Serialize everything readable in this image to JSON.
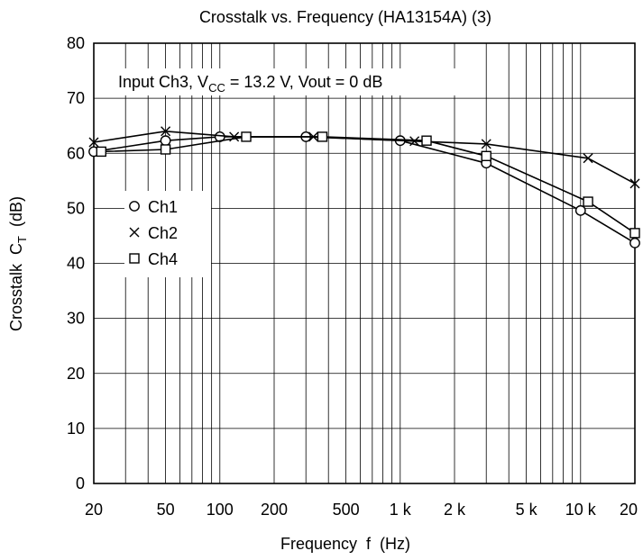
{
  "chart_data": {
    "type": "line",
    "title": "Crosstalk vs. Frequency (HA13154A) (3)",
    "condition": {
      "prefix": "Input Ch3, V",
      "subscript": "CC",
      "suffix": " = 13.2 V, Vout = 0 dB"
    },
    "xlabel": "Frequency  f  (Hz)",
    "ylabel": {
      "main": "Crosstalk  C",
      "subscript": "T",
      "unit": "  (dB)"
    },
    "x_scale": "log",
    "xlim": [
      20,
      20000
    ],
    "ylim": [
      0,
      80
    ],
    "x_ticks": [
      {
        "value": 20,
        "label": "20"
      },
      {
        "value": 50,
        "label": "50"
      },
      {
        "value": 100,
        "label": "100"
      },
      {
        "value": 200,
        "label": "200"
      },
      {
        "value": 500,
        "label": "500"
      },
      {
        "value": 1000,
        "label": "1 k"
      },
      {
        "value": 2000,
        "label": "2 k"
      },
      {
        "value": 5000,
        "label": "5 k"
      },
      {
        "value": 10000,
        "label": "10 k"
      },
      {
        "value": 20000,
        "label": "20 k"
      }
    ],
    "y_ticks": [
      {
        "value": 0,
        "label": "0"
      },
      {
        "value": 10,
        "label": "10"
      },
      {
        "value": 20,
        "label": "20"
      },
      {
        "value": 30,
        "label": "30"
      },
      {
        "value": 40,
        "label": "40"
      },
      {
        "value": 50,
        "label": "50"
      },
      {
        "value": 60,
        "label": "60"
      },
      {
        "value": 70,
        "label": "70"
      },
      {
        "value": 80,
        "label": "80"
      }
    ],
    "grid": true,
    "legend_position": "left-middle",
    "series": [
      {
        "name": "Ch1",
        "marker": "circle",
        "points": [
          [
            20,
            60.3
          ],
          [
            50,
            62.3
          ],
          [
            100,
            63
          ],
          [
            300,
            63
          ],
          [
            1000,
            62.3
          ],
          [
            3000,
            58.2
          ],
          [
            10000,
            49.6
          ],
          [
            20000,
            43.7
          ]
        ]
      },
      {
        "name": "Ch2",
        "marker": "cross",
        "points": [
          [
            20,
            62
          ],
          [
            50,
            64
          ],
          [
            120,
            63
          ],
          [
            330,
            63
          ],
          [
            1200,
            62.2
          ],
          [
            3000,
            61.7
          ],
          [
            11000,
            59.1
          ],
          [
            20000,
            54.5
          ]
        ]
      },
      {
        "name": "Ch4",
        "marker": "square",
        "points": [
          [
            22,
            60.3
          ],
          [
            50,
            60.7
          ],
          [
            140,
            63
          ],
          [
            370,
            63
          ],
          [
            1400,
            62.3
          ],
          [
            3000,
            59.5
          ],
          [
            11000,
            51.2
          ],
          [
            20000,
            45.5
          ]
        ]
      }
    ]
  }
}
